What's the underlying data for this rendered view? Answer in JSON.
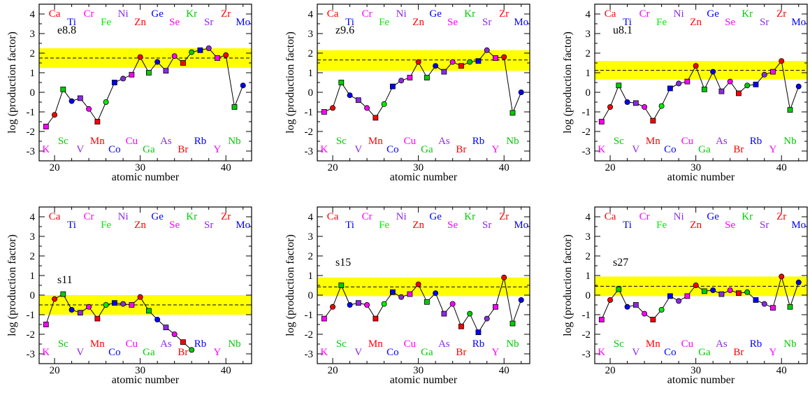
{
  "chart_data": [
    {
      "type": "scatter",
      "label": "e8.8",
      "xlabel": "atomic number",
      "ylabel": "log (production factor)",
      "xlim": [
        18.2,
        43.0
      ],
      "ylim": [
        -3.5,
        4.5
      ],
      "xticks": [
        20,
        30,
        40
      ],
      "yticks": [
        -3,
        -2,
        -1,
        0,
        1,
        2,
        3,
        4
      ],
      "band": [
        1.25,
        2.25
      ],
      "mean": 1.75,
      "x": [
        19,
        20,
        21,
        22,
        23,
        24,
        25,
        26,
        27,
        28,
        29,
        30,
        31,
        32,
        33,
        34,
        35,
        36,
        37,
        38,
        39,
        40,
        41,
        42
      ],
      "y": [
        -1.75,
        -1.15,
        0.15,
        -0.45,
        -0.3,
        -0.85,
        -1.5,
        -0.5,
        0.5,
        0.7,
        0.9,
        1.8,
        1.0,
        1.55,
        1.1,
        1.85,
        1.5,
        2.05,
        2.15,
        2.25,
        1.75,
        1.9,
        -0.75,
        0.35
      ]
    },
    {
      "type": "scatter",
      "label": "z9.6",
      "xlabel": "atomic number",
      "ylabel": "log (production factor)",
      "xlim": [
        18.2,
        43.0
      ],
      "ylim": [
        -3.5,
        4.5
      ],
      "xticks": [
        20,
        30,
        40
      ],
      "yticks": [
        -3,
        -2,
        -1,
        0,
        1,
        2,
        3,
        4
      ],
      "band": [
        1.1,
        2.15
      ],
      "mean": 1.65,
      "x": [
        19,
        20,
        21,
        22,
        23,
        24,
        25,
        26,
        27,
        28,
        29,
        30,
        31,
        32,
        33,
        34,
        35,
        36,
        37,
        38,
        39,
        40,
        41,
        42
      ],
      "y": [
        -1.0,
        -0.8,
        0.5,
        -0.15,
        -0.4,
        -0.8,
        -1.3,
        -0.6,
        0.3,
        0.6,
        0.75,
        1.55,
        0.75,
        1.35,
        1.05,
        1.55,
        1.35,
        1.55,
        1.6,
        2.15,
        1.75,
        1.8,
        -1.05,
        0.0
      ]
    },
    {
      "type": "scatter",
      "label": "u8.1",
      "xlabel": "atomic number",
      "ylabel": "log (production factor)",
      "xlim": [
        18.2,
        43.0
      ],
      "ylim": [
        -3.5,
        4.5
      ],
      "xticks": [
        20,
        30,
        40
      ],
      "yticks": [
        -3,
        -2,
        -1,
        0,
        1,
        2,
        3,
        4
      ],
      "band": [
        0.65,
        1.6
      ],
      "mean": 1.12,
      "x": [
        19,
        20,
        21,
        22,
        23,
        24,
        25,
        26,
        27,
        28,
        29,
        30,
        31,
        32,
        33,
        34,
        35,
        36,
        37,
        38,
        39,
        40,
        41,
        42
      ],
      "y": [
        -1.5,
        -0.75,
        0.35,
        -0.5,
        -0.55,
        -0.75,
        -1.45,
        -0.7,
        0.2,
        0.45,
        0.55,
        1.35,
        0.15,
        1.05,
        0.05,
        0.55,
        -0.05,
        0.35,
        0.4,
        0.9,
        1.05,
        1.6,
        -0.9,
        0.3
      ]
    },
    {
      "type": "scatter",
      "label": "s11",
      "xlabel": "atomic number",
      "ylabel": "log (production factor)",
      "xlim": [
        18.2,
        43.0
      ],
      "ylim": [
        -3.5,
        4.5
      ],
      "xticks": [
        20,
        30,
        40
      ],
      "yticks": [
        -3,
        -2,
        -1,
        0,
        1,
        2,
        3,
        4
      ],
      "band": [
        -1.0,
        0.0
      ],
      "mean": -0.5,
      "x": [
        19,
        20,
        21,
        22,
        23,
        24,
        25,
        26,
        27,
        28,
        29,
        30,
        31,
        32,
        33,
        34,
        35,
        36
      ],
      "y": [
        -1.5,
        -0.2,
        0.05,
        -0.75,
        -0.9,
        -0.6,
        -1.2,
        -0.5,
        -0.4,
        -0.45,
        -0.5,
        -0.1,
        -0.8,
        -1.25,
        -1.65,
        -2.0,
        -2.4,
        -2.8
      ]
    },
    {
      "type": "scatter",
      "label": "s15",
      "xlabel": "atomic number",
      "ylabel": "log (production factor)",
      "xlim": [
        18.2,
        43.0
      ],
      "ylim": [
        -3.5,
        4.5
      ],
      "xticks": [
        20,
        30,
        40
      ],
      "yticks": [
        -3,
        -2,
        -1,
        0,
        1,
        2,
        3,
        4
      ],
      "band": [
        -0.05,
        0.9
      ],
      "mean": 0.42,
      "x": [
        19,
        20,
        21,
        22,
        23,
        24,
        25,
        26,
        27,
        28,
        29,
        30,
        31,
        32,
        33,
        34,
        35,
        36,
        37,
        38,
        39,
        40,
        41,
        42
      ],
      "y": [
        -1.2,
        -0.6,
        0.5,
        -0.5,
        -0.4,
        -0.5,
        -1.2,
        -0.45,
        0.15,
        -0.1,
        0.05,
        0.55,
        -0.35,
        0.1,
        -0.95,
        -0.45,
        -1.6,
        -0.95,
        -1.9,
        -1.2,
        -0.6,
        0.9,
        -1.45,
        -0.25
      ]
    },
    {
      "type": "scatter",
      "label": "s27",
      "xlabel": "atomic number",
      "ylabel": "log (production factor)",
      "xlim": [
        18.2,
        43.0
      ],
      "ylim": [
        -3.5,
        4.5
      ],
      "xticks": [
        20,
        30,
        40
      ],
      "yticks": [
        -3,
        -2,
        -1,
        0,
        1,
        2,
        3,
        4
      ],
      "band": [
        -0.05,
        0.95
      ],
      "mean": 0.45,
      "x": [
        19,
        20,
        21,
        22,
        23,
        24,
        25,
        26,
        27,
        28,
        29,
        30,
        31,
        32,
        33,
        34,
        35,
        36,
        37,
        38,
        39,
        40,
        41,
        42
      ],
      "y": [
        -1.25,
        -0.25,
        0.3,
        -0.6,
        -0.5,
        -0.95,
        -1.25,
        -0.75,
        -0.05,
        -0.3,
        -0.05,
        0.5,
        0.2,
        0.25,
        0.05,
        0.25,
        0.1,
        0.15,
        -0.25,
        -0.45,
        -0.65,
        0.95,
        -0.6,
        0.65
      ]
    }
  ],
  "elements": [
    {
      "z": 19,
      "symbol": "K",
      "color": "#ff00ff",
      "row": "bottom"
    },
    {
      "z": 20,
      "symbol": "Ca",
      "color": "#ff0000",
      "row": "top"
    },
    {
      "z": 21,
      "symbol": "Sc",
      "color": "#00cc00",
      "row": "bottom"
    },
    {
      "z": 22,
      "symbol": "Ti",
      "color": "#0000ff",
      "row": "top"
    },
    {
      "z": 23,
      "symbol": "V",
      "color": "#8a2be2",
      "row": "bottom"
    },
    {
      "z": 24,
      "symbol": "Cr",
      "color": "#ff00ff",
      "row": "top"
    },
    {
      "z": 25,
      "symbol": "Mn",
      "color": "#ff0000",
      "row": "bottom"
    },
    {
      "z": 26,
      "symbol": "Fe",
      "color": "#00ee00",
      "row": "top"
    },
    {
      "z": 27,
      "symbol": "Co",
      "color": "#0000ff",
      "row": "bottom"
    },
    {
      "z": 28,
      "symbol": "Ni",
      "color": "#8a2be2",
      "row": "top"
    },
    {
      "z": 29,
      "symbol": "Cu",
      "color": "#ff00ff",
      "row": "bottom"
    },
    {
      "z": 30,
      "symbol": "Zn",
      "color": "#ff0000",
      "row": "top"
    },
    {
      "z": 31,
      "symbol": "Ga",
      "color": "#00cc00",
      "row": "bottom"
    },
    {
      "z": 32,
      "symbol": "Ge",
      "color": "#0000ff",
      "row": "top"
    },
    {
      "z": 33,
      "symbol": "As",
      "color": "#8a2be2",
      "row": "bottom"
    },
    {
      "z": 34,
      "symbol": "Se",
      "color": "#ff00ff",
      "row": "top"
    },
    {
      "z": 35,
      "symbol": "Br",
      "color": "#ff0000",
      "row": "bottom"
    },
    {
      "z": 36,
      "symbol": "Kr",
      "color": "#00cc00",
      "row": "top"
    },
    {
      "z": 37,
      "symbol": "Rb",
      "color": "#0000ff",
      "row": "bottom"
    },
    {
      "z": 38,
      "symbol": "Sr",
      "color": "#8a2be2",
      "row": "top"
    },
    {
      "z": 39,
      "symbol": "Y",
      "color": "#ff00ff",
      "row": "bottom"
    },
    {
      "z": 40,
      "symbol": "Zr",
      "color": "#ff0000",
      "row": "top"
    },
    {
      "z": 41,
      "symbol": "Nb",
      "color": "#00cc00",
      "row": "bottom"
    },
    {
      "z": 42,
      "symbol": "Mo",
      "color": "#0000ff",
      "row": "top"
    }
  ],
  "colors": {
    "band": "#ffff00",
    "line": "#000000",
    "frame": "#000000"
  }
}
